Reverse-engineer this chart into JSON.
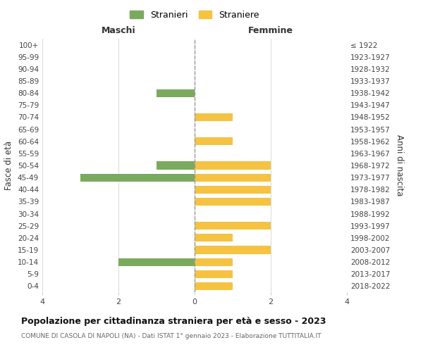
{
  "age_groups": [
    "100+",
    "95-99",
    "90-94",
    "85-89",
    "80-84",
    "75-79",
    "70-74",
    "65-69",
    "60-64",
    "55-59",
    "50-54",
    "45-49",
    "40-44",
    "35-39",
    "30-34",
    "25-29",
    "20-24",
    "15-19",
    "10-14",
    "5-9",
    "0-4"
  ],
  "birth_years": [
    "≤ 1922",
    "1923-1927",
    "1928-1932",
    "1933-1937",
    "1938-1942",
    "1943-1947",
    "1948-1952",
    "1953-1957",
    "1958-1962",
    "1963-1967",
    "1968-1972",
    "1973-1977",
    "1978-1982",
    "1983-1987",
    "1988-1992",
    "1993-1997",
    "1998-2002",
    "2003-2007",
    "2008-2012",
    "2013-2017",
    "2018-2022"
  ],
  "maschi": [
    0,
    0,
    0,
    0,
    1,
    0,
    0,
    0,
    0,
    0,
    1,
    3,
    0,
    0,
    0,
    0,
    0,
    0,
    2,
    0,
    0
  ],
  "femmine": [
    0,
    0,
    0,
    0,
    0,
    0,
    1,
    0,
    1,
    0,
    2,
    2,
    2,
    2,
    0,
    2,
    1,
    2,
    1,
    1,
    1
  ],
  "color_maschi": "#7aaa5d",
  "color_femmine": "#f5c242",
  "title": "Popolazione per cittadinanza straniera per età e sesso - 2023",
  "subtitle": "COMUNE DI CASOLA DI NAPOLI (NA) - Dati ISTAT 1° gennaio 2023 - Elaborazione TUTTITALIA.IT",
  "ylabel_left": "Fasce di età",
  "ylabel_right": "Anni di nascita",
  "xlabel_left": "Maschi",
  "xlabel_right": "Femmine",
  "legend_stranieri": "Stranieri",
  "legend_straniere": "Straniere",
  "xlim": 4,
  "background_color": "#ffffff",
  "grid_color": "#dddddd"
}
